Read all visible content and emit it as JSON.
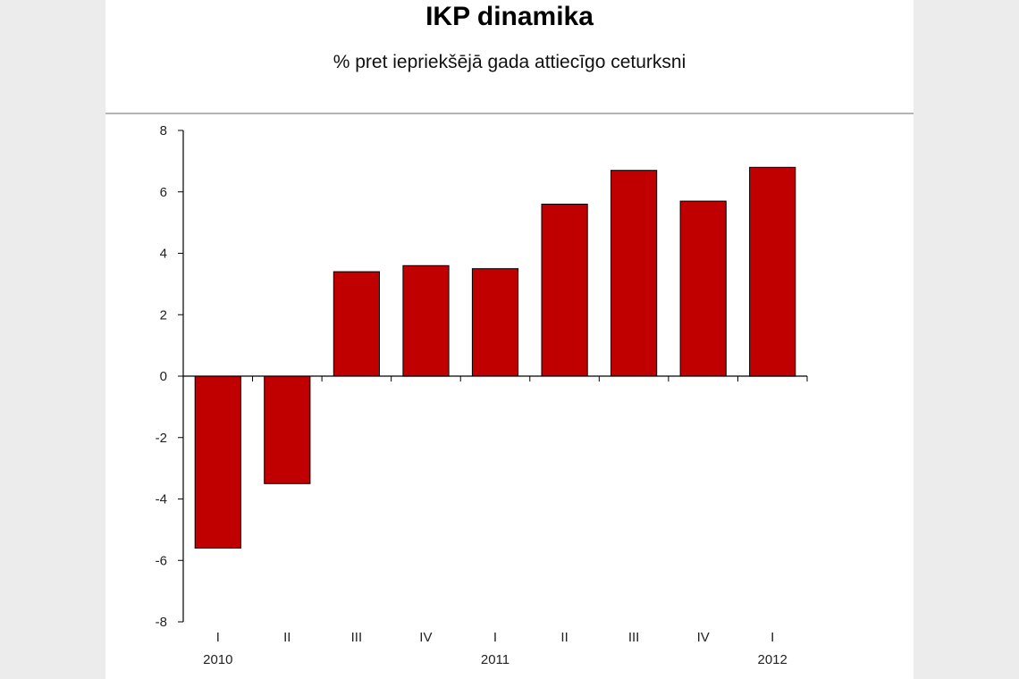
{
  "chart_data": {
    "type": "bar",
    "title": "IKP dinamika",
    "subtitle": "% pret iepriekšējā gada attiecīgo ceturksni",
    "categories": [
      "I",
      "II",
      "III",
      "IV",
      "I",
      "II",
      "III",
      "IV",
      "I"
    ],
    "year_labels": [
      "2010",
      "2011",
      "2012"
    ],
    "values": [
      -5.6,
      -3.5,
      3.4,
      3.6,
      3.5,
      5.6,
      6.7,
      5.7,
      6.8
    ],
    "yticks": [
      "8",
      "6",
      "4",
      "2",
      "0",
      "-2",
      "-4",
      "-6",
      "-8"
    ],
    "ylim": [
      -8,
      8
    ],
    "xlabel": "",
    "ylabel": "",
    "grid": false,
    "bar_color": "#c00000"
  }
}
